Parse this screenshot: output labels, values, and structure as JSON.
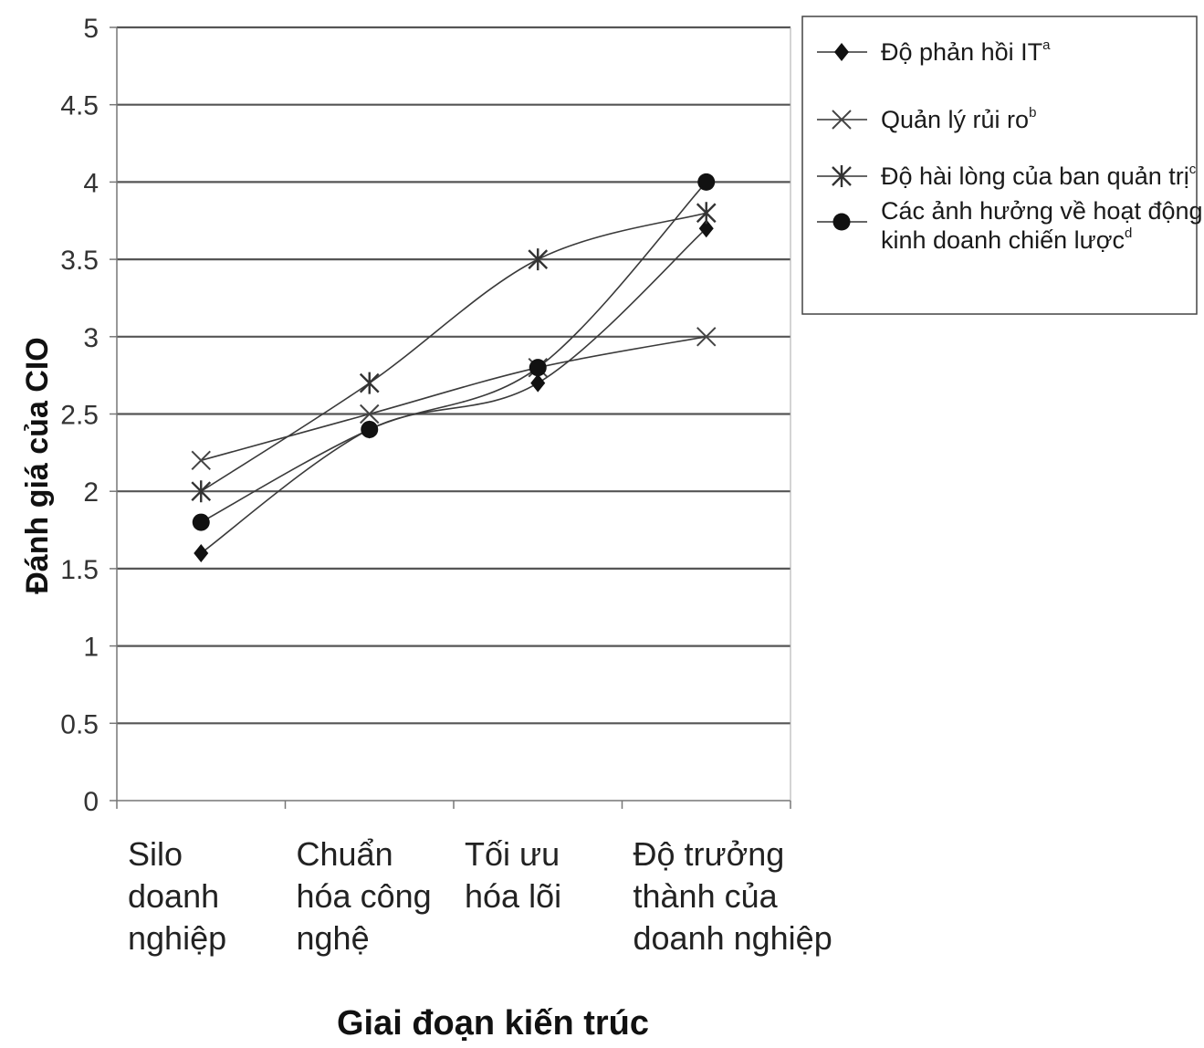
{
  "chart_data": {
    "type": "line",
    "xlabel": "Giai đoạn kiến trúc",
    "ylabel": "Đánh giá của CIO",
    "ylim": [
      0,
      5
    ],
    "yticks": [
      "0",
      "0.5",
      "1",
      "1.5",
      "2",
      "2.5",
      "3",
      "3.5",
      "4",
      "4.5",
      "5"
    ],
    "grid": true,
    "legend_position": "top-right",
    "categories": [
      [
        "Silo",
        "doanh",
        "nghiệp"
      ],
      [
        "Chuẩn",
        "hóa công",
        "nghệ"
      ],
      [
        "Tối ưu",
        "hóa lõi"
      ],
      [
        "Độ trưởng",
        "thành của",
        "doanh nghiệp"
      ]
    ],
    "series": [
      {
        "name": "Độ phản hồi IT",
        "sup": "a",
        "marker": "diamond",
        "values": [
          1.6,
          2.4,
          2.7,
          3.7
        ]
      },
      {
        "name": "Quản lý rủi ro",
        "sup": "b",
        "marker": "x",
        "values": [
          2.2,
          2.5,
          2.8,
          3.0
        ]
      },
      {
        "name": "Độ hài lòng của ban quản trị",
        "sup": "c",
        "marker": "star",
        "values": [
          2.0,
          2.7,
          3.5,
          3.8
        ]
      },
      {
        "name": [
          "Các ảnh hưởng về hoạt động",
          "kinh doanh chiến lược"
        ],
        "sup": "d",
        "marker": "circle",
        "values": [
          1.8,
          2.4,
          2.8,
          4.0
        ]
      }
    ]
  }
}
